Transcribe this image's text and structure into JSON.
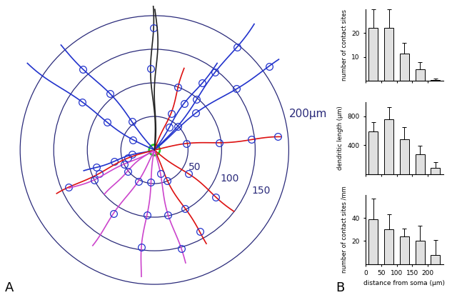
{
  "diagram": {
    "label": "A",
    "rings": [
      {
        "radius": 50,
        "label": "50"
      },
      {
        "radius": 100,
        "label": "100"
      },
      {
        "radius": 150,
        "label": "150"
      },
      {
        "radius": 200,
        "label": "200µm"
      }
    ]
  },
  "panel_b_label": "B",
  "chart_data": [
    {
      "type": "bar",
      "ylabel": "number of contact sites",
      "x": [
        25,
        75,
        125,
        175,
        225
      ],
      "values": [
        22,
        22,
        11.5,
        5,
        0.5
      ],
      "errors": [
        8,
        8,
        4.5,
        3,
        0.5
      ],
      "xlim": [
        0,
        250
      ],
      "ylim": [
        0,
        30
      ],
      "xticks": [
        0,
        50,
        100,
        150,
        200
      ],
      "yticks": [
        10,
        20
      ],
      "tick_labels": "y",
      "color": "#e0e0e0"
    },
    {
      "type": "bar",
      "ylabel": "dendritic length (µm)",
      "x": [
        25,
        75,
        125,
        175,
        225
      ],
      "values": [
        590,
        760,
        480,
        270,
        90
      ],
      "errors": [
        130,
        170,
        170,
        120,
        70
      ],
      "xlim": [
        0,
        250
      ],
      "ylim": [
        0,
        1000
      ],
      "xticks": [
        0,
        50,
        100,
        150,
        200
      ],
      "yticks": [
        400,
        800
      ],
      "tick_labels": "y",
      "color": "#e0e0e0"
    },
    {
      "type": "bar",
      "ylabel": "number of contact sites /mm",
      "xlabel": "distance from soma (µm)",
      "x": [
        25,
        75,
        125,
        175,
        225
      ],
      "values": [
        39,
        30,
        24,
        20,
        8
      ],
      "errors": [
        18,
        13,
        7,
        13,
        13
      ],
      "xlim": [
        0,
        250
      ],
      "ylim": [
        0,
        60
      ],
      "xticks": [
        0,
        50,
        100,
        150,
        200
      ],
      "yticks": [
        20,
        40
      ],
      "color": "#e0e0e0"
    }
  ]
}
